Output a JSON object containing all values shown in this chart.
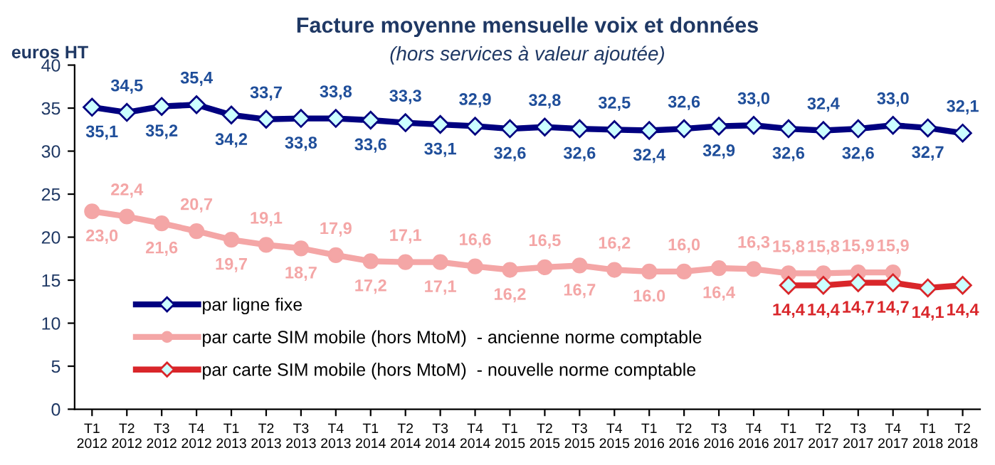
{
  "chart_data": {
    "type": "line",
    "title": "Facture moyenne mensuelle voix et données",
    "subtitle": "(hors services à valeur ajoutée)",
    "ylabel": "euros HT",
    "categories": [
      "T1\n2012",
      "T2\n2012",
      "T3\n2012",
      "T4\n2012",
      "T1\n2013",
      "T2\n2013",
      "T3\n2013",
      "T4\n2013",
      "T1\n2014",
      "T2\n2014",
      "T3\n2014",
      "T4\n2014",
      "T1\n2015",
      "T2\n2015",
      "T3\n2015",
      "T4\n2015",
      "T1\n2016",
      "T2\n2016",
      "T3\n2016",
      "T4\n2016",
      "T1\n2017",
      "T2\n2017",
      "T3\n2017",
      "T4\n2017",
      "T1\n2018",
      "T2\n2018"
    ],
    "series": [
      {
        "name": "par ligne fixe",
        "color": "#000080",
        "marker": "diamond",
        "values": [
          35.1,
          34.5,
          35.2,
          35.4,
          34.2,
          33.7,
          33.8,
          33.8,
          33.6,
          33.3,
          33.1,
          32.9,
          32.6,
          32.8,
          32.6,
          32.5,
          32.4,
          32.6,
          32.9,
          33.0,
          32.6,
          32.4,
          32.6,
          33.0,
          32.7,
          32.1
        ],
        "value_labels": [
          "35,1",
          "34,5",
          "35,2",
          "35,4",
          "34,2",
          "33,7",
          "33,8",
          "33,8",
          "33,6",
          "33,3",
          "33,1",
          "32,9",
          "32,6",
          "32,8",
          "32,6",
          "32,5",
          "32,4",
          "32,6",
          "32,9",
          "33,0",
          "32,6",
          "32,4",
          "32,6",
          "33,0",
          "32,7",
          "32,1"
        ]
      },
      {
        "name": "par carte SIM mobile (hors MtoM)  - ancienne norme comptable",
        "color": "#f4a6a6",
        "marker": "circle",
        "values": [
          23.0,
          22.4,
          21.6,
          20.7,
          19.7,
          19.1,
          18.7,
          17.9,
          17.2,
          17.1,
          17.1,
          16.6,
          16.2,
          16.5,
          16.7,
          16.2,
          16.0,
          16.0,
          16.4,
          16.3,
          15.8,
          15.8,
          15.9,
          15.9,
          null,
          null
        ],
        "value_labels": [
          "23,0",
          "22,4",
          "21,6",
          "20,7",
          "19,7",
          "19,1",
          "18,7",
          "17,9",
          "17,2",
          "17,1",
          "17,1",
          "16,6",
          "16,2",
          "16,5",
          "16,7",
          "16,2",
          "16.0",
          "16,0",
          "16,4",
          "16,3",
          "15,8",
          "15,8",
          "15,9",
          "15,9",
          null,
          null
        ]
      },
      {
        "name": "par carte SIM mobile (hors MtoM)  - nouvelle norme comptable",
        "color": "#d9262a",
        "marker": "diamond",
        "values": [
          null,
          null,
          null,
          null,
          null,
          null,
          null,
          null,
          null,
          null,
          null,
          null,
          null,
          null,
          null,
          null,
          null,
          null,
          null,
          null,
          14.4,
          14.4,
          14.7,
          14.7,
          14.1,
          14.4
        ],
        "value_labels": [
          null,
          null,
          null,
          null,
          null,
          null,
          null,
          null,
          null,
          null,
          null,
          null,
          null,
          null,
          null,
          null,
          null,
          null,
          null,
          null,
          "14,4",
          "14,4",
          "14,7",
          "14,7",
          "14,1",
          "14,4"
        ]
      }
    ],
    "ylim": [
      0,
      40
    ],
    "yticks": [
      0,
      5,
      10,
      15,
      20,
      25,
      30,
      35,
      40
    ],
    "grid": false,
    "legend": "left",
    "line_style": "solid"
  }
}
